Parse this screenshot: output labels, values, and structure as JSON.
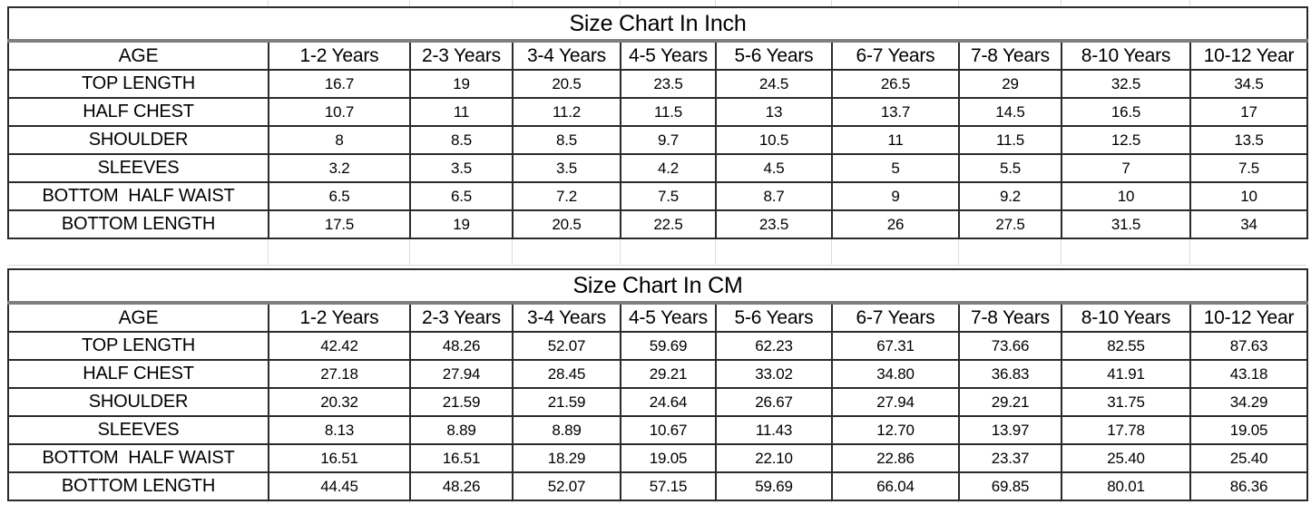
{
  "chart_data": [
    {
      "type": "table",
      "title": "Size Chart In Inch",
      "unit": "inch",
      "columns": [
        "AGE",
        "1-2 Years",
        "2-3 Years",
        "3-4 Years",
        "4-5 Years",
        "5-6 Years",
        "6-7 Years",
        "7-8 Years",
        "8-10 Years",
        "10-12 Year"
      ],
      "rows": [
        {
          "label": "TOP LENGTH",
          "values": [
            "16.7",
            "19",
            "20.5",
            "23.5",
            "24.5",
            "26.5",
            "29",
            "32.5",
            "34.5"
          ]
        },
        {
          "label": "HALF CHEST",
          "values": [
            "10.7",
            "11",
            "11.2",
            "11.5",
            "13",
            "13.7",
            "14.5",
            "16.5",
            "17"
          ]
        },
        {
          "label": "SHOULDER",
          "values": [
            "8",
            "8.5",
            "8.5",
            "9.7",
            "10.5",
            "11",
            "11.5",
            "12.5",
            "13.5"
          ]
        },
        {
          "label": "SLEEVES",
          "values": [
            "3.2",
            "3.5",
            "3.5",
            "4.2",
            "4.5",
            "5",
            "5.5",
            "7",
            "7.5"
          ]
        },
        {
          "label": "BOTTOM  HALF WAIST",
          "values": [
            "6.5",
            "6.5",
            "7.2",
            "7.5",
            "8.7",
            "9",
            "9.2",
            "10",
            "10"
          ]
        },
        {
          "label": "BOTTOM LENGTH",
          "values": [
            "17.5",
            "19",
            "20.5",
            "22.5",
            "23.5",
            "26",
            "27.5",
            "31.5",
            "34"
          ]
        }
      ]
    },
    {
      "type": "table",
      "title": "Size Chart In CM",
      "unit": "cm",
      "columns": [
        "AGE",
        "1-2 Years",
        "2-3 Years",
        "3-4 Years",
        "4-5 Years",
        "5-6 Years",
        "6-7 Years",
        "7-8 Years",
        "8-10 Years",
        "10-12 Year"
      ],
      "rows": [
        {
          "label": "TOP LENGTH",
          "values": [
            "42.42",
            "48.26",
            "52.07",
            "59.69",
            "62.23",
            "67.31",
            "73.66",
            "82.55",
            "87.63"
          ]
        },
        {
          "label": "HALF CHEST",
          "values": [
            "27.18",
            "27.94",
            "28.45",
            "29.21",
            "33.02",
            "34.80",
            "36.83",
            "41.91",
            "43.18"
          ]
        },
        {
          "label": "SHOULDER",
          "values": [
            "20.32",
            "21.59",
            "21.59",
            "24.64",
            "26.67",
            "27.94",
            "29.21",
            "31.75",
            "34.29"
          ]
        },
        {
          "label": "SLEEVES",
          "values": [
            "8.13",
            "8.89",
            "8.89",
            "10.67",
            "11.43",
            "12.70",
            "13.97",
            "17.78",
            "19.05"
          ]
        },
        {
          "label": "BOTTOM  HALF WAIST",
          "values": [
            "16.51",
            "16.51",
            "18.29",
            "19.05",
            "22.10",
            "22.86",
            "23.37",
            "25.40",
            "25.40"
          ]
        },
        {
          "label": "BOTTOM LENGTH",
          "values": [
            "44.45",
            "48.26",
            "52.07",
            "57.15",
            "59.69",
            "66.04",
            "69.85",
            "80.01",
            "86.36"
          ]
        }
      ]
    }
  ],
  "colors": {
    "text": "#000000",
    "background": "#ffffff",
    "cell_border": "#2b2b2b",
    "title_separator": "#7f7f7f",
    "faint_gridline": "#dcdcdc"
  }
}
